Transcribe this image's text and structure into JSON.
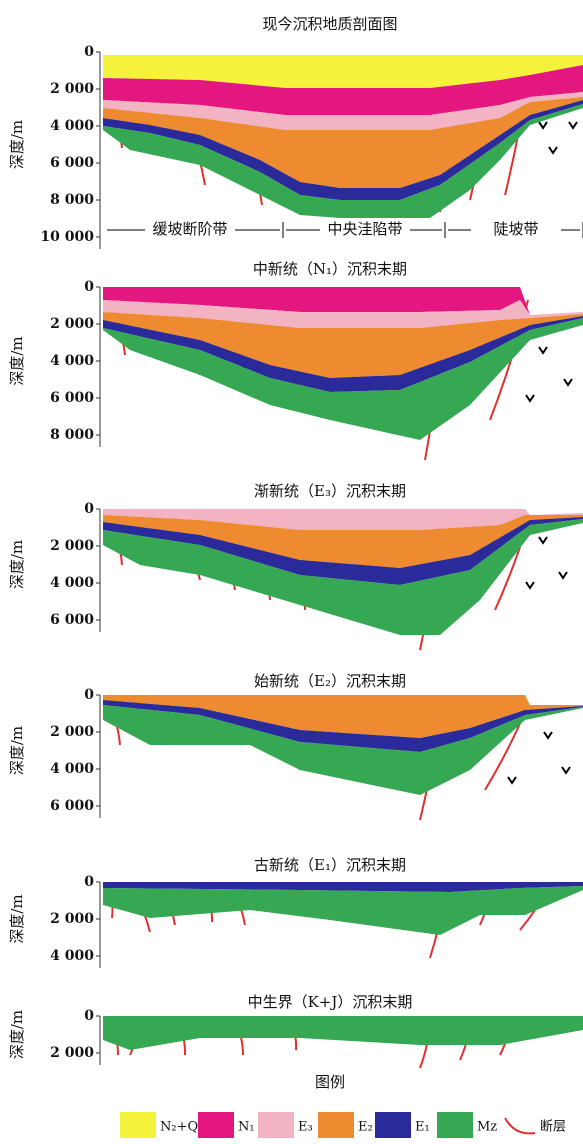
{
  "panels": [
    {
      "title": "现今沉积地质剖面图",
      "axis_label": "深度/m",
      "ticks": [
        "0",
        "2 000",
        "4 000",
        "6 000",
        "8 000",
        "10 000"
      ],
      "zones": [
        "缓坡断阶带",
        "中央洼陷带",
        "陡坡带"
      ]
    },
    {
      "title": "中新统（N₁）沉积末期",
      "axis_label": "深度/m",
      "ticks": [
        "0",
        "2 000",
        "4 000",
        "6 000",
        "8 000"
      ]
    },
    {
      "title": "渐新统（E₃）沉积末期",
      "axis_label": "深度/m",
      "ticks": [
        "0",
        "2 000",
        "4 000",
        "6 000"
      ]
    },
    {
      "title": "始新统（E₂）沉积末期",
      "axis_label": "深度/m",
      "ticks": [
        "0",
        "2 000",
        "4 000",
        "6 000"
      ]
    },
    {
      "title": "古新统（E₁）沉积末期",
      "axis_label": "深度/m",
      "ticks": [
        "0",
        "2 000",
        "4 000"
      ]
    },
    {
      "title": "中生界（K+J）沉积末期",
      "axis_label": "深度/m",
      "ticks": [
        "0",
        "2 000"
      ]
    }
  ],
  "legend": {
    "title": "图例",
    "items": [
      "N₂+Q",
      "N₁",
      "E₃",
      "E₂",
      "E₁",
      "Mz",
      "断层"
    ]
  }
}
